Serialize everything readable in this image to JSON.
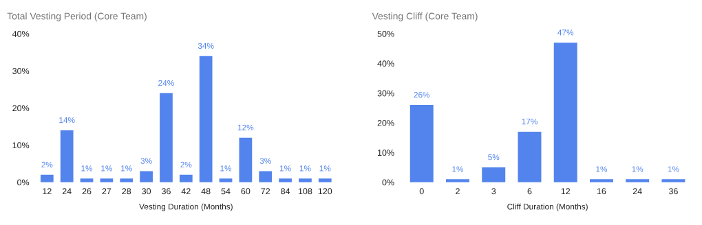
{
  "chart_data": [
    {
      "type": "bar",
      "title": "Total Vesting Period (Core Team)",
      "xlabel": "Vesting Duration (Months)",
      "categories": [
        "12",
        "24",
        "26",
        "27",
        "28",
        "30",
        "36",
        "42",
        "48",
        "54",
        "60",
        "72",
        "84",
        "108",
        "120"
      ],
      "values": [
        2,
        14,
        1,
        1,
        1,
        3,
        24,
        2,
        34,
        1,
        12,
        3,
        1,
        1,
        1
      ],
      "value_labels": [
        "2%",
        "14%",
        "1%",
        "1%",
        "1%",
        "3%",
        "24%",
        "2%",
        "34%",
        "1%",
        "12%",
        "3%",
        "1%",
        "1%",
        "1%"
      ],
      "color": "#5384ed",
      "ylim": [
        0,
        40
      ],
      "yticks": [
        {
          "value": 0,
          "label": "0%"
        },
        {
          "value": 10,
          "label": "10%"
        },
        {
          "value": 20,
          "label": "20%"
        },
        {
          "value": 30,
          "label": "30%"
        },
        {
          "value": 40,
          "label": "40%"
        }
      ],
      "grid": false,
      "legend": false
    },
    {
      "type": "bar",
      "title": "Vesting Cliff (Core Team)",
      "xlabel": "Cliff Duration (Months)",
      "categories": [
        "0",
        "2",
        "3",
        "6",
        "12",
        "16",
        "24",
        "36"
      ],
      "values": [
        26,
        1,
        5,
        17,
        47,
        1,
        1,
        1
      ],
      "value_labels": [
        "26%",
        "1%",
        "5%",
        "17%",
        "47%",
        "1%",
        "1%",
        "1%"
      ],
      "color": "#5384ed",
      "ylim": [
        0,
        50
      ],
      "yticks": [
        {
          "value": 0,
          "label": "0%"
        },
        {
          "value": 10,
          "label": "10%"
        },
        {
          "value": 20,
          "label": "20%"
        },
        {
          "value": 30,
          "label": "30%"
        },
        {
          "value": 40,
          "label": "40%"
        },
        {
          "value": 50,
          "label": "50%"
        }
      ],
      "grid": false,
      "legend": false
    }
  ]
}
